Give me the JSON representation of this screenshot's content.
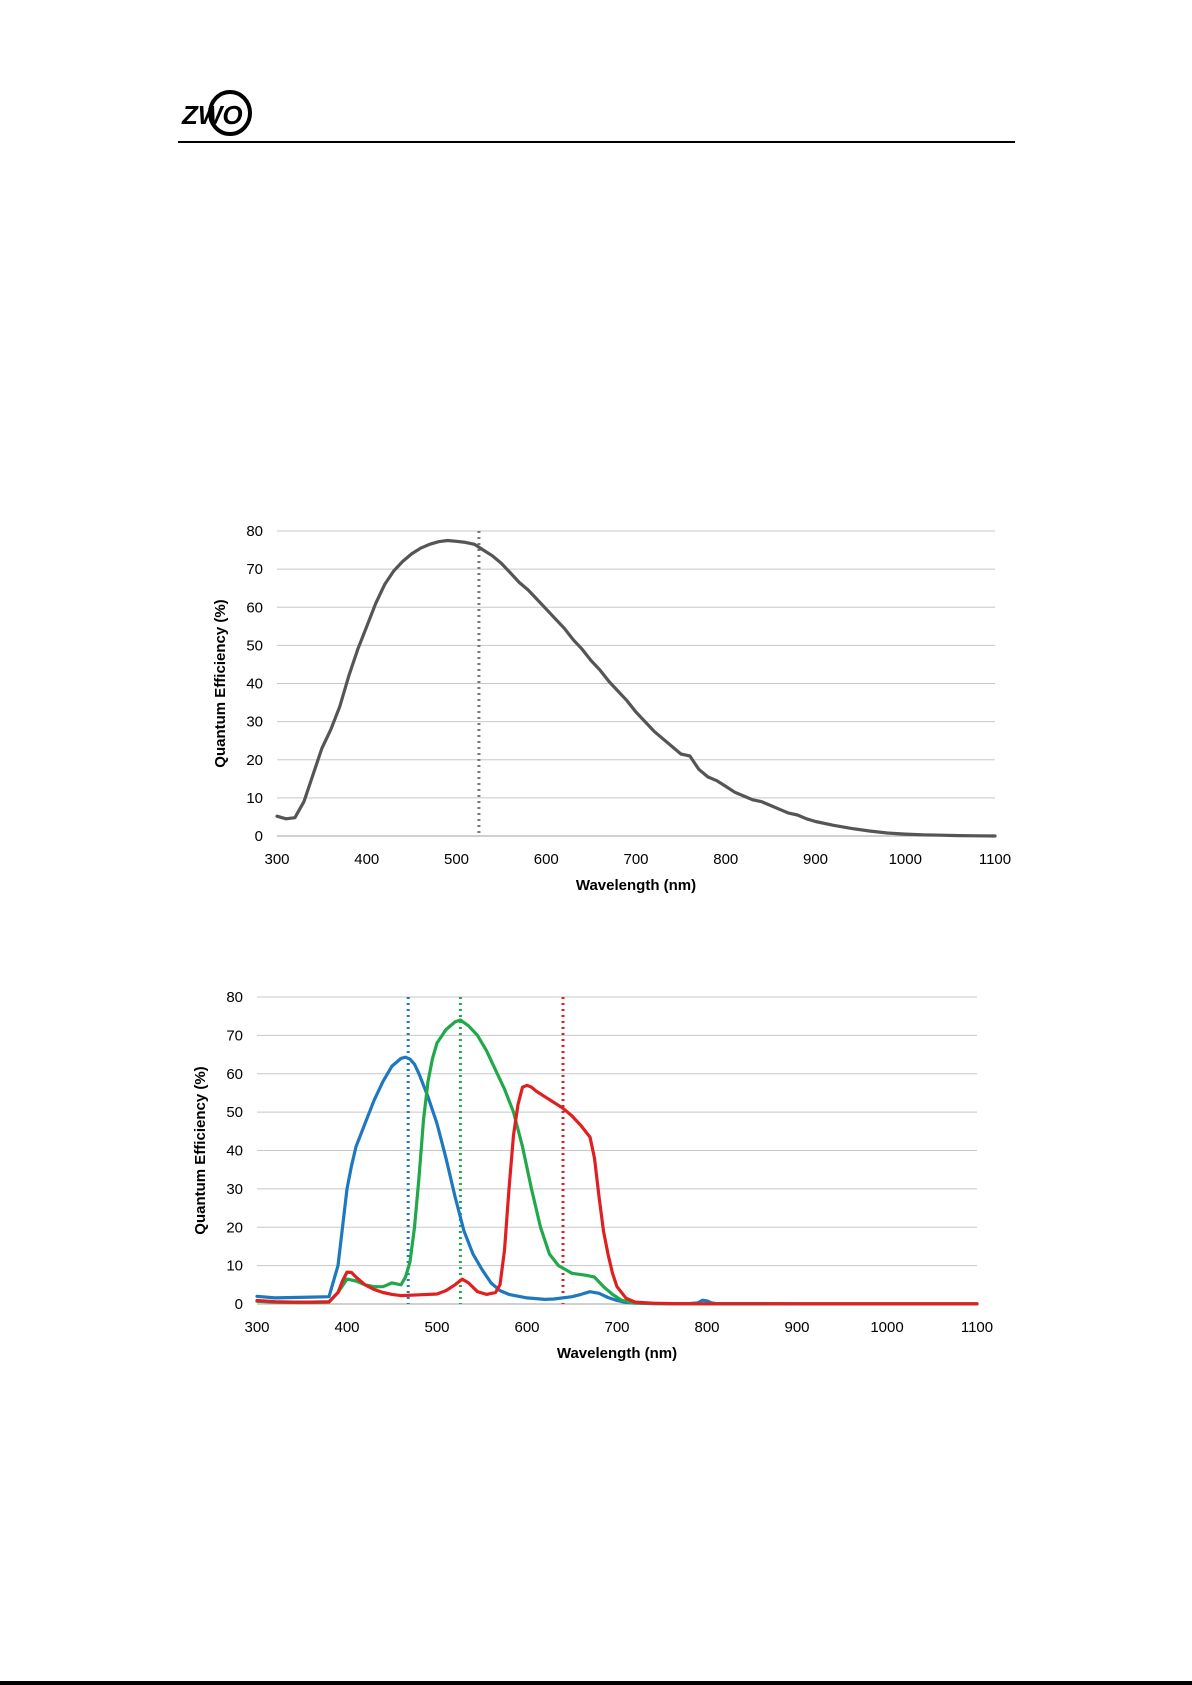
{
  "header": {
    "logo_text": "ZWO"
  },
  "colors": {
    "mono": "#555555",
    "mono_marker": "#777777",
    "grid": "#c8c8c8",
    "red": "#e02020",
    "green": "#20a84a",
    "blue": "#1e78c0"
  },
  "chart_data": [
    {
      "type": "line",
      "title": "",
      "xlabel": "Wavelength (nm)",
      "ylabel": "Quantum Efficiency (%)",
      "xlim": [
        300,
        1100
      ],
      "ylim": [
        0,
        80
      ],
      "xticks": [
        300,
        400,
        500,
        600,
        700,
        800,
        900,
        1000,
        1100
      ],
      "yticks": [
        0,
        10,
        20,
        30,
        40,
        50,
        60,
        70,
        80
      ],
      "grid": true,
      "legend": "none",
      "markers": [
        {
          "x": 525,
          "color": "#777777"
        }
      ],
      "series": [
        {
          "color": "#555555",
          "x": [
            300,
            310,
            320,
            330,
            340,
            350,
            360,
            370,
            380,
            390,
            400,
            410,
            420,
            430,
            440,
            450,
            460,
            470,
            480,
            490,
            500,
            510,
            520,
            530,
            540,
            550,
            560,
            570,
            580,
            590,
            600,
            610,
            620,
            630,
            640,
            650,
            660,
            670,
            680,
            690,
            700,
            710,
            720,
            730,
            740,
            750,
            760,
            770,
            780,
            790,
            800,
            810,
            820,
            830,
            840,
            850,
            860,
            870,
            880,
            890,
            900,
            920,
            940,
            960,
            980,
            1000,
            1020,
            1040,
            1060,
            1080,
            1100
          ],
          "y": [
            5.2,
            4.5,
            4.8,
            9,
            16,
            23,
            28,
            34,
            42,
            49,
            55,
            61,
            66,
            69.5,
            72,
            74,
            75.5,
            76.5,
            77.2,
            77.5,
            77.3,
            77,
            76.5,
            75,
            73.5,
            71.5,
            69,
            66.5,
            64.5,
            62,
            59.5,
            57,
            54.5,
            51.5,
            49,
            46,
            43.5,
            40.5,
            38,
            35.5,
            32.5,
            30,
            27.5,
            25.5,
            23.5,
            21.5,
            21,
            17.5,
            15.5,
            14.5,
            13,
            11.5,
            10.5,
            9.5,
            9,
            8,
            7,
            6,
            5.5,
            4.5,
            3.8,
            2.8,
            2,
            1.3,
            0.8,
            0.5,
            0.3,
            0.2,
            0.1,
            0.05,
            0
          ]
        }
      ]
    },
    {
      "type": "line",
      "title": "",
      "xlabel": "Wavelength (nm)",
      "ylabel": "Quantum Efficiency (%)",
      "xlim": [
        300,
        1100
      ],
      "ylim": [
        0,
        80
      ],
      "xticks": [
        300,
        400,
        500,
        600,
        700,
        800,
        900,
        1000,
        1100
      ],
      "yticks": [
        0,
        10,
        20,
        30,
        40,
        50,
        60,
        70,
        80
      ],
      "grid": true,
      "legend": "none",
      "markers": [
        {
          "x": 468,
          "color": "#1e78c0"
        },
        {
          "x": 526,
          "color": "#20a84a"
        },
        {
          "x": 640,
          "color": "#e02020"
        }
      ],
      "series": [
        {
          "color": "#1e78c0",
          "x": [
            300,
            320,
            340,
            360,
            380,
            390,
            395,
            400,
            405,
            410,
            420,
            430,
            440,
            450,
            460,
            465,
            470,
            475,
            480,
            490,
            500,
            510,
            520,
            530,
            540,
            550,
            560,
            570,
            580,
            600,
            620,
            630,
            650,
            660,
            670,
            680,
            690,
            700,
            710,
            720,
            740,
            760,
            780,
            790,
            795,
            800,
            805,
            810,
            850,
            900,
            1000,
            1100
          ],
          "y": [
            2,
            1.6,
            1.7,
            1.8,
            1.9,
            10,
            20,
            30,
            36,
            41,
            47,
            53,
            58,
            62,
            64,
            64.3,
            63.8,
            62.5,
            60,
            54,
            47,
            38,
            28,
            19,
            13,
            9,
            5.5,
            3.5,
            2.5,
            1.6,
            1.2,
            1.3,
            1.9,
            2.5,
            3.2,
            2.8,
            1.7,
            0.9,
            0.4,
            0.2,
            0.1,
            0.1,
            0.1,
            0.3,
            1,
            0.8,
            0.3,
            0.1,
            0.1,
            0.05,
            0.05,
            0.05
          ]
        },
        {
          "color": "#20a84a",
          "x": [
            300,
            320,
            340,
            360,
            380,
            390,
            400,
            410,
            420,
            430,
            440,
            450,
            460,
            465,
            470,
            475,
            480,
            485,
            490,
            495,
            500,
            510,
            520,
            526,
            535,
            545,
            555,
            565,
            575,
            585,
            595,
            605,
            615,
            625,
            635,
            650,
            665,
            675,
            685,
            695,
            705,
            715,
            730,
            750,
            800,
            900,
            1100
          ],
          "y": [
            0.7,
            0.5,
            0.4,
            0.4,
            0.5,
            3,
            6.5,
            6,
            5,
            4.5,
            4.5,
            5.5,
            5,
            7,
            11,
            20,
            33,
            48,
            58,
            64,
            68,
            71.5,
            73.5,
            74,
            72.5,
            70,
            66,
            61,
            56,
            50,
            41,
            30,
            20,
            13,
            10,
            8,
            7.5,
            7,
            4.5,
            2.5,
            1,
            0.4,
            0.2,
            0.1,
            0.05,
            0.05,
            0.05
          ]
        },
        {
          "color": "#e02020",
          "x": [
            300,
            320,
            340,
            360,
            380,
            390,
            395,
            400,
            405,
            410,
            420,
            430,
            440,
            450,
            460,
            480,
            500,
            510,
            520,
            528,
            535,
            545,
            555,
            565,
            570,
            575,
            580,
            585,
            590,
            595,
            600,
            605,
            610,
            620,
            630,
            640,
            650,
            660,
            670,
            675,
            680,
            685,
            690,
            695,
            700,
            710,
            720,
            740,
            760,
            800,
            900,
            1100
          ],
          "y": [
            0.9,
            0.6,
            0.5,
            0.5,
            0.6,
            3,
            6,
            8.3,
            8.2,
            7,
            5,
            3.8,
            3,
            2.5,
            2.2,
            2.4,
            2.6,
            3.5,
            5,
            6.5,
            5.5,
            3.2,
            2.5,
            3,
            5,
            14,
            30,
            44,
            52,
            56.5,
            57,
            56.5,
            55.5,
            54,
            52.5,
            51,
            49,
            46.5,
            43.5,
            38,
            28,
            19,
            13,
            8,
            4.5,
            1.5,
            0.5,
            0.2,
            0.1,
            0.05,
            0.05,
            0.05
          ]
        }
      ]
    }
  ]
}
